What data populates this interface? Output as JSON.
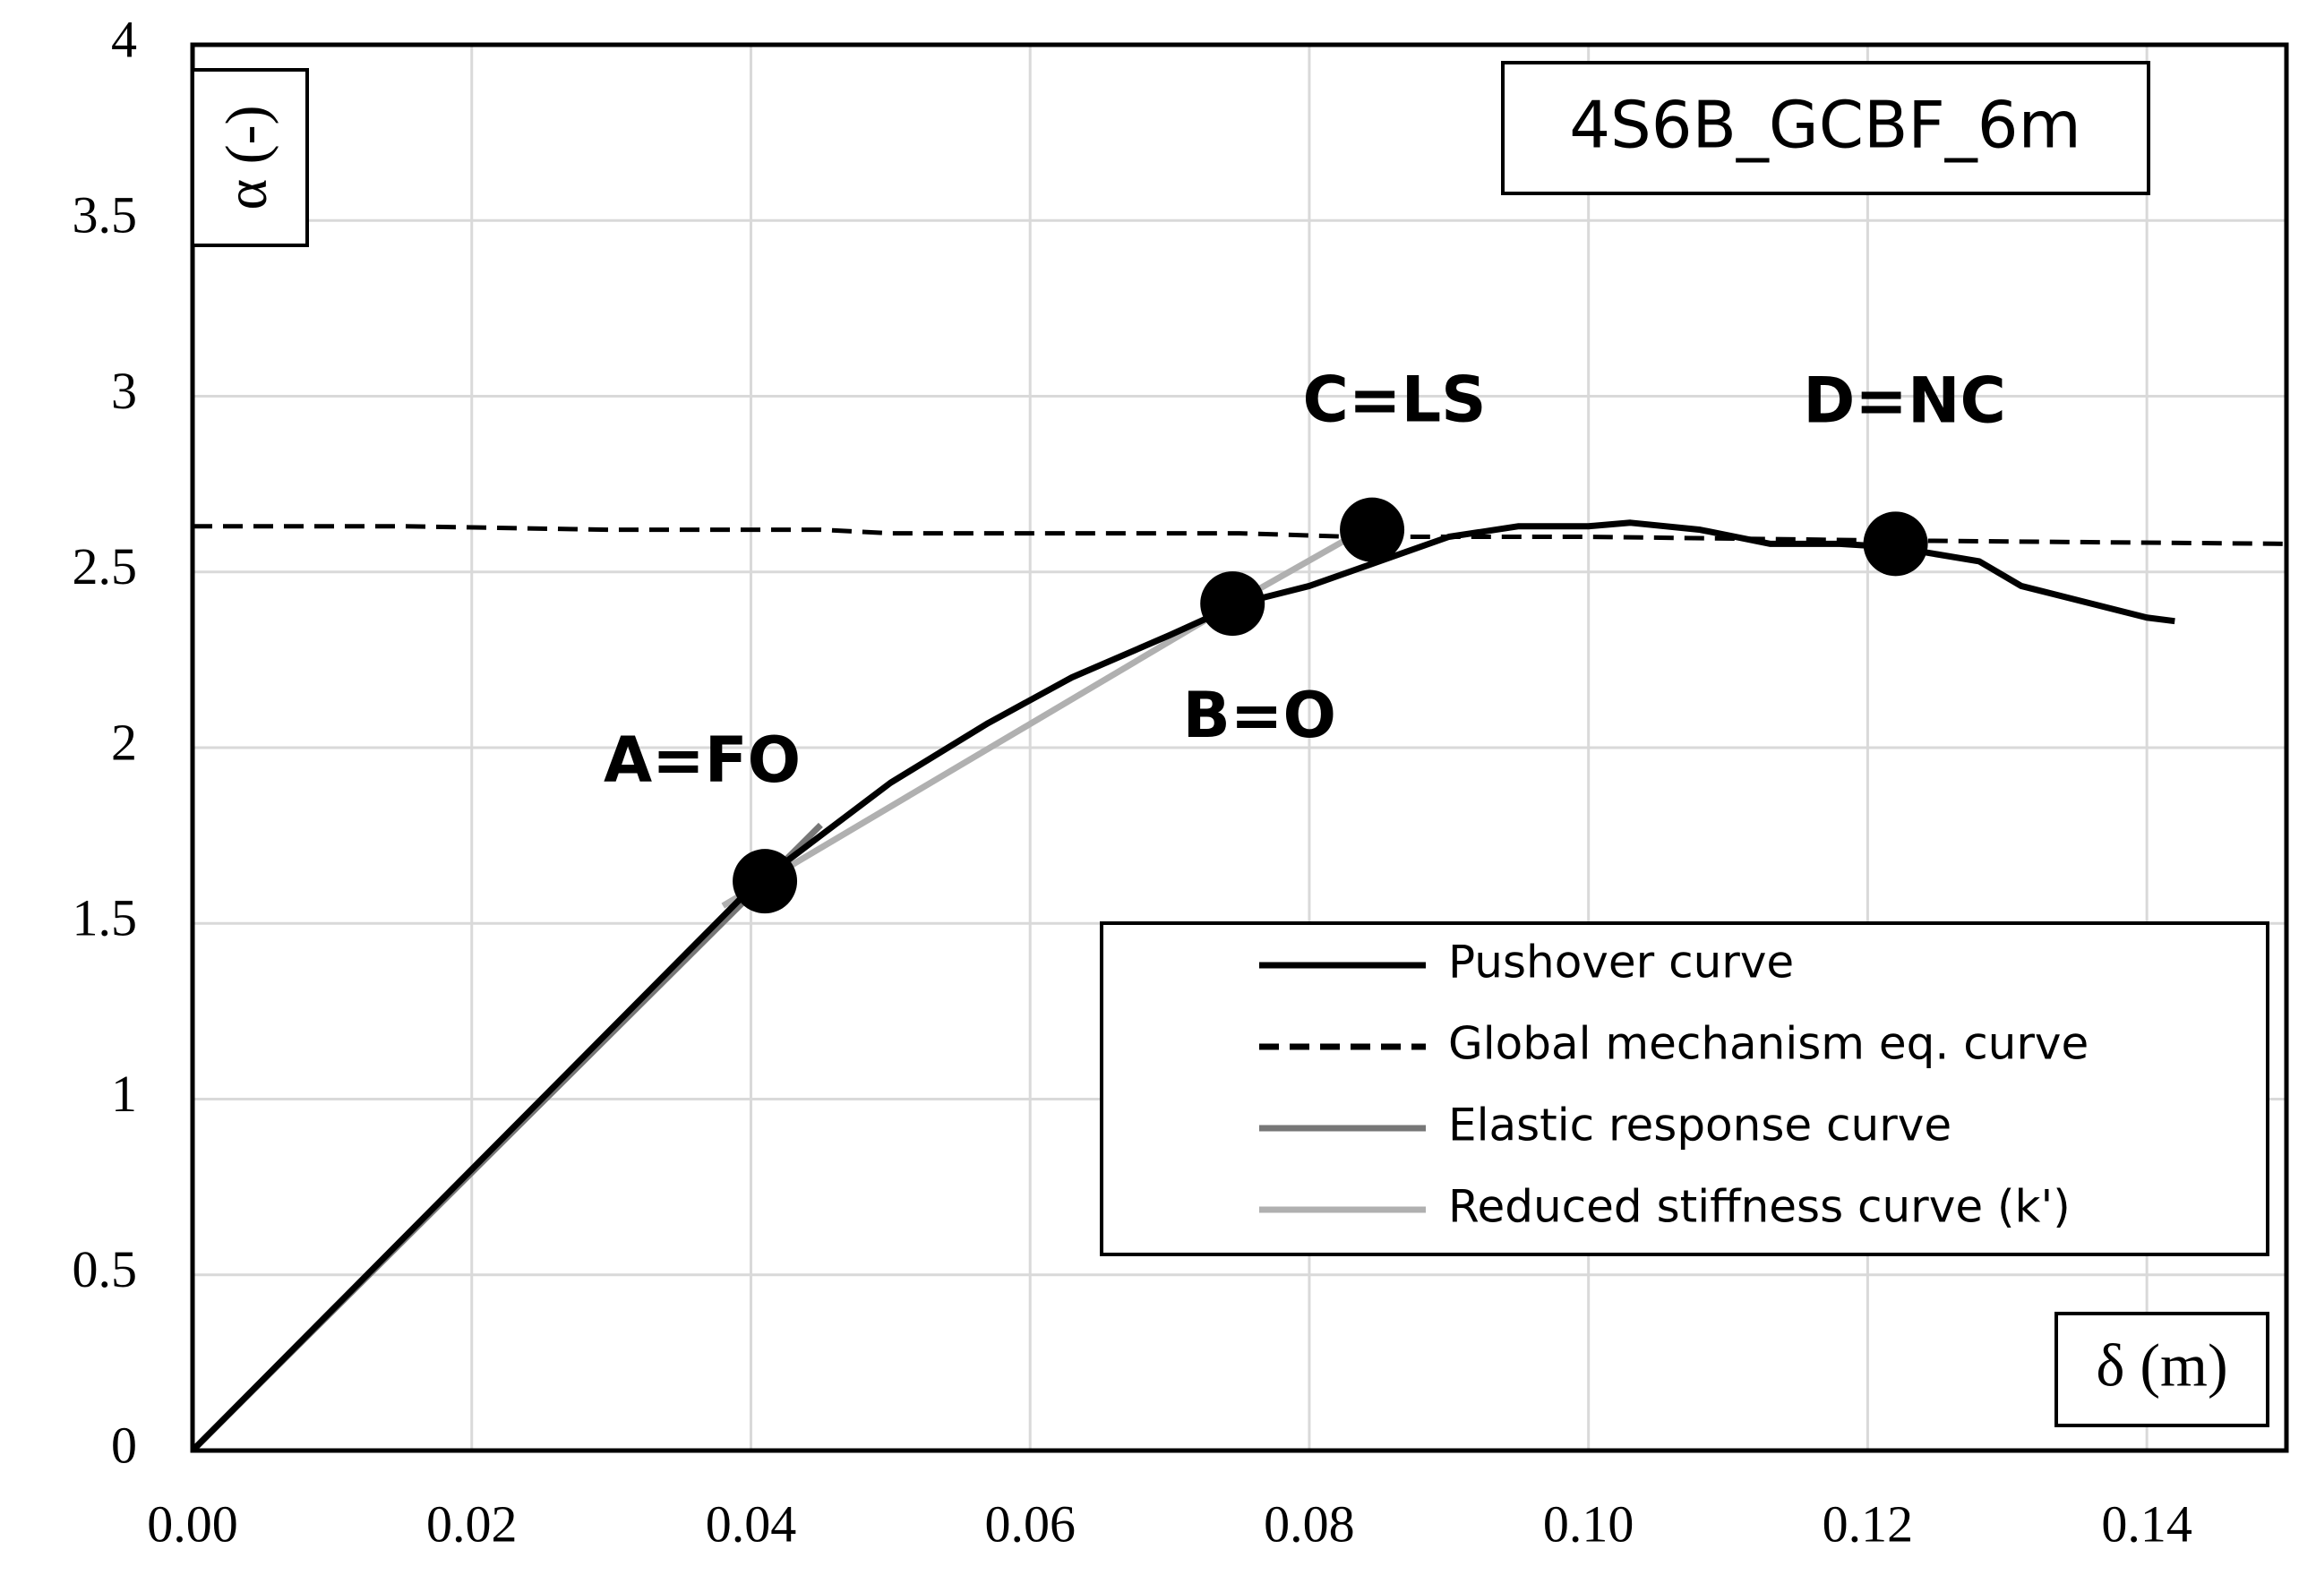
{
  "chart_data": {
    "type": "line",
    "title": "4S6B_GCBF_6m",
    "x_label": "δ (m)",
    "y_label": "α (-)",
    "xlim": [
      0,
      0.15
    ],
    "ylim": [
      0,
      4
    ],
    "xticks": [
      {
        "value": 0,
        "label": "0.00"
      },
      {
        "value": 0.02,
        "label": "0.02"
      },
      {
        "value": 0.04,
        "label": "0.04"
      },
      {
        "value": 0.06,
        "label": "0.06"
      },
      {
        "value": 0.08,
        "label": "0.08"
      },
      {
        "value": 0.1,
        "label": "0.10"
      },
      {
        "value": 0.12,
        "label": "0.12"
      },
      {
        "value": 0.14,
        "label": "0.14"
      }
    ],
    "yticks": [
      0,
      0.5,
      1,
      1.5,
      2,
      2.5,
      3,
      3.5,
      4
    ],
    "grid": true,
    "legend": "lower-right",
    "series": [
      {
        "name": "Pushover curve",
        "color": "#000000",
        "dashed": false,
        "x": [
          0,
          0.01,
          0.02,
          0.03,
          0.04,
          0.045,
          0.05,
          0.057,
          0.063,
          0.07,
          0.075,
          0.08,
          0.085,
          0.09,
          0.095,
          0.1,
          0.103,
          0.108,
          0.113,
          0.118,
          0.122,
          0.125,
          0.128,
          0.131,
          0.135,
          0.14,
          0.142
        ],
        "values": [
          0,
          0.4,
          0.8,
          1.2,
          1.6,
          1.75,
          1.9,
          2.07,
          2.2,
          2.32,
          2.41,
          2.46,
          2.53,
          2.6,
          2.63,
          2.63,
          2.64,
          2.62,
          2.58,
          2.58,
          2.57,
          2.55,
          2.53,
          2.46,
          2.42,
          2.37,
          2.36
        ]
      },
      {
        "name": "Global mechanism eq. curve",
        "color": "#000000",
        "dashed": true,
        "x": [
          0,
          0.015,
          0.03,
          0.045,
          0.05,
          0.075,
          0.083,
          0.1,
          0.12,
          0.15
        ],
        "values": [
          2.63,
          2.63,
          2.62,
          2.62,
          2.61,
          2.61,
          2.6,
          2.6,
          2.59,
          2.58
        ]
      },
      {
        "name": "Elastic response curve",
        "color": "#777777",
        "dashed": false,
        "x": [
          0,
          0.045
        ],
        "values": [
          0,
          1.78
        ]
      },
      {
        "name": "Reduced stiffness curve (k')",
        "color": "#b0b0b0",
        "dashed": false,
        "x": [
          0.038,
          0.055,
          0.075,
          0.083
        ],
        "values": [
          1.55,
          1.95,
          2.42,
          2.6
        ]
      }
    ],
    "points": {
      "color": "#000000",
      "labels": [
        "A=FO",
        "B=O",
        "C=LS",
        "D=NC"
      ],
      "x": [
        0.041,
        0.0745,
        0.0845,
        0.122
      ],
      "values": [
        1.62,
        2.41,
        2.62,
        2.58
      ]
    }
  }
}
